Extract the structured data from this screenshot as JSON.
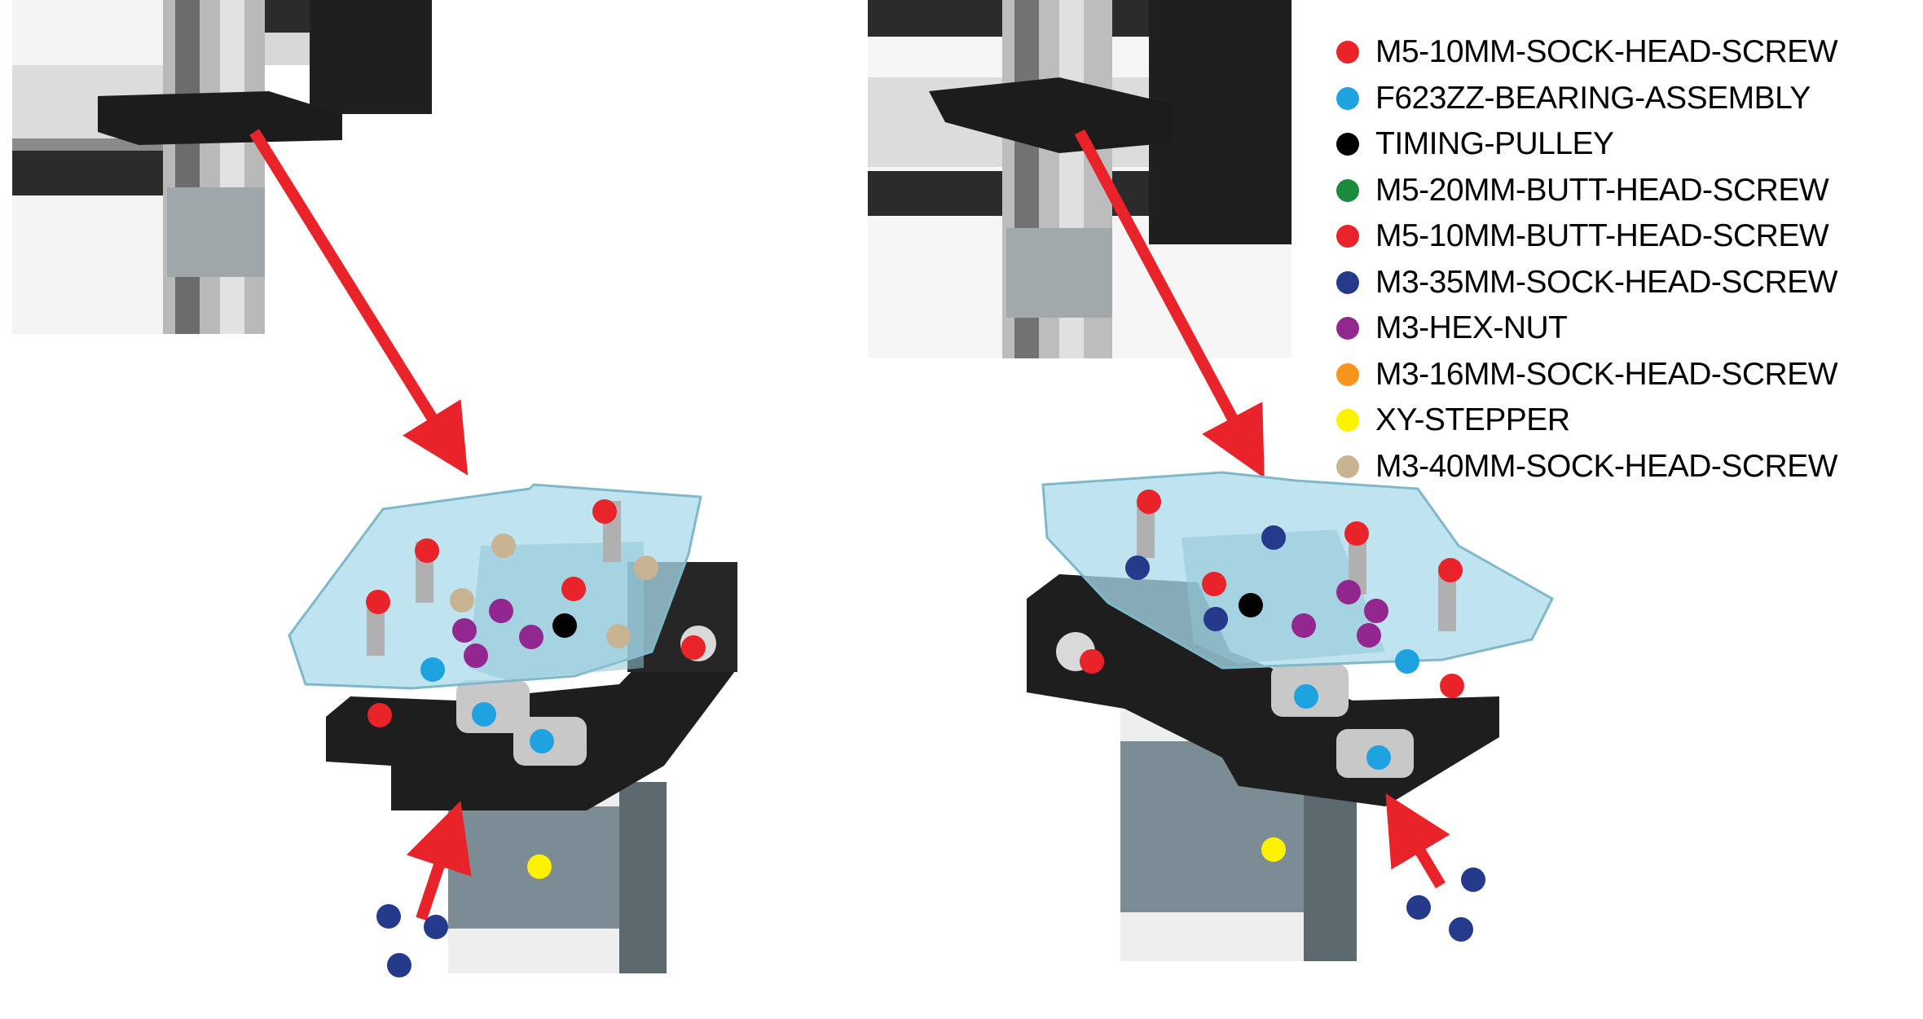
{
  "legend": [
    {
      "label": "M5-10MM-SOCK-HEAD-SCREW",
      "color": "#e8232a"
    },
    {
      "label": "F623ZZ-BEARING-ASSEMBLY",
      "color": "#1fa3e0"
    },
    {
      "label": "TIMING-PULLEY",
      "color": "#000000"
    },
    {
      "label": "M5-20MM-BUTT-HEAD-SCREW",
      "color": "#1a8a3c"
    },
    {
      "label": "M5-10MM-BUTT-HEAD-SCREW",
      "color": "#e8232a"
    },
    {
      "label": "M3-35MM-SOCK-HEAD-SCREW",
      "color": "#263a8c"
    },
    {
      "label": "M3-HEX-NUT",
      "color": "#92278f"
    },
    {
      "label": "M3-16MM-SOCK-HEAD-SCREW",
      "color": "#f7941d"
    },
    {
      "label": "XY-STEPPER",
      "color": "#fff200"
    },
    {
      "label": "M3-40MM-SOCK-HEAD-SCREW",
      "color": "#c8b493"
    }
  ],
  "colors": {
    "arrow": "#e8232a",
    "acrylic": "#a9dbe9",
    "block": "#1e1e1e",
    "motor": "#7b8c94"
  }
}
